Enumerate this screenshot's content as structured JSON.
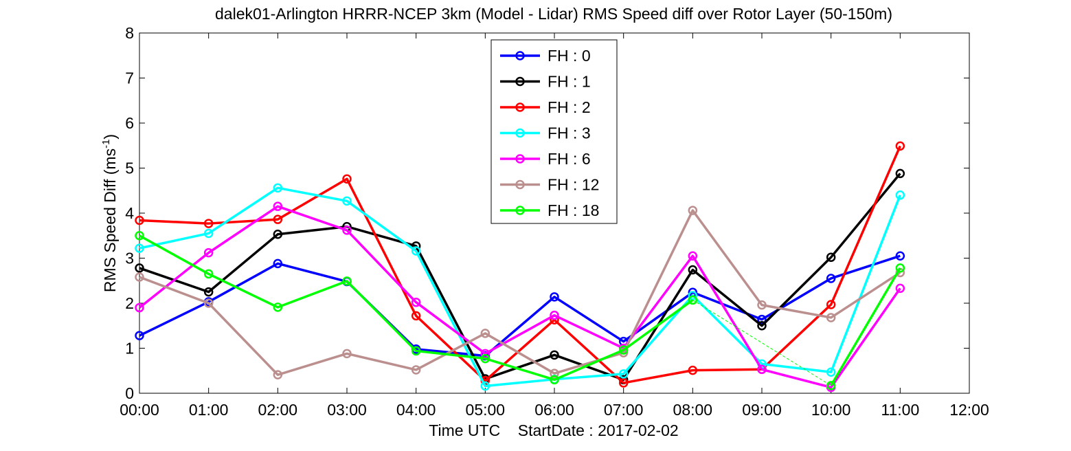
{
  "chart_data": {
    "type": "line",
    "title": "dalek01-Arlington HRRR-NCEP 3km (Model - Lidar) RMS Speed diff over Rotor Layer (50-150m)",
    "xlabel": "Time UTC    StartDate : 2017-02-02",
    "ylabel": "RMS Speed Diff (ms",
    "ylabel_sup": "-1",
    "ylabel_close": ")",
    "x_ticks": [
      "00:00",
      "01:00",
      "02:00",
      "03:00",
      "04:00",
      "05:00",
      "06:00",
      "07:00",
      "08:00",
      "09:00",
      "10:00",
      "11:00",
      "12:00"
    ],
    "y_ticks": [
      "0",
      "1",
      "2",
      "3",
      "4",
      "5",
      "6",
      "7",
      "8"
    ],
    "xlim": [
      0,
      12
    ],
    "ylim": [
      0,
      8
    ],
    "legend_position": "top-center",
    "series": [
      {
        "name": "FH : 0",
        "color": "#0000ff",
        "x": [
          0,
          1,
          2,
          3,
          4,
          5,
          6,
          7,
          8,
          9,
          10,
          11
        ],
        "values": [
          1.28,
          2.03,
          2.88,
          2.48,
          0.98,
          0.83,
          2.14,
          1.15,
          2.24,
          1.64,
          2.55,
          3.05
        ]
      },
      {
        "name": "FH : 1",
        "color": "#000000",
        "x": [
          0,
          1,
          2,
          3,
          4,
          5,
          6,
          7,
          8,
          9,
          10,
          11
        ],
        "values": [
          2.78,
          2.25,
          3.53,
          3.7,
          3.27,
          0.32,
          0.85,
          0.3,
          2.74,
          1.5,
          3.02,
          4.88
        ]
      },
      {
        "name": "FH : 2",
        "color": "#ff0000",
        "x": [
          0,
          1,
          2,
          3,
          4,
          5,
          6,
          7,
          8,
          9,
          10,
          11
        ],
        "values": [
          3.84,
          3.77,
          3.86,
          4.76,
          1.72,
          0.28,
          1.63,
          0.23,
          0.51,
          0.53,
          1.97,
          5.49
        ]
      },
      {
        "name": "FH : 3",
        "color": "#00ffff",
        "x": [
          0,
          1,
          2,
          3,
          4,
          5,
          6,
          7,
          8,
          9,
          10,
          11
        ],
        "values": [
          3.22,
          3.55,
          4.56,
          4.27,
          3.16,
          0.16,
          0.31,
          0.43,
          2.17,
          0.65,
          0.47,
          4.4
        ]
      },
      {
        "name": "FH : 6",
        "color": "#ff00ff",
        "x": [
          0,
          1,
          2,
          3,
          4,
          5,
          6,
          7,
          8,
          9,
          10,
          11
        ],
        "values": [
          1.9,
          3.12,
          4.15,
          3.62,
          2.02,
          0.88,
          1.73,
          1.0,
          3.05,
          0.53,
          0.13,
          2.33
        ]
      },
      {
        "name": "FH : 12",
        "color": "#bc8f8f",
        "x": [
          0,
          1,
          2,
          3,
          4,
          5,
          6,
          7,
          8,
          9,
          10,
          11
        ],
        "values": [
          2.58,
          2.0,
          0.41,
          0.88,
          0.52,
          1.33,
          0.44,
          0.9,
          4.06,
          1.96,
          1.68,
          2.68
        ]
      },
      {
        "name": "FH : 18",
        "color": "#00ff00",
        "x": [
          0,
          1,
          2,
          3,
          4,
          5,
          6,
          7,
          8,
          10,
          11
        ],
        "values": [
          3.5,
          2.65,
          1.91,
          2.49,
          0.94,
          0.77,
          0.3,
          0.96,
          2.07,
          0.17,
          2.78
        ],
        "gap_after_index": 8
      }
    ]
  }
}
